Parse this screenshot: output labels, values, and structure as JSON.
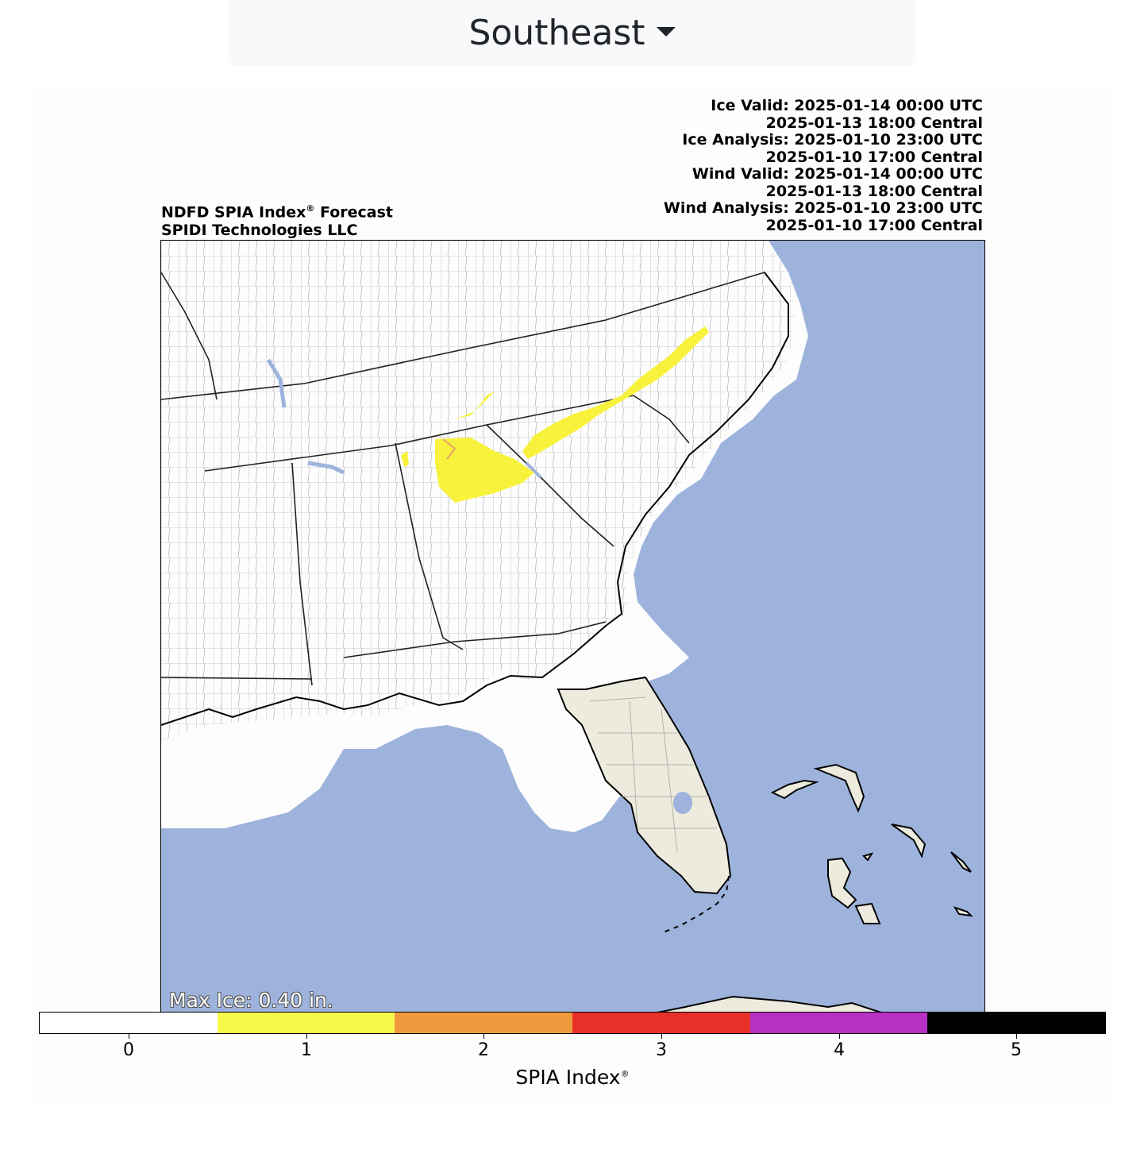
{
  "region_selector": {
    "label": "Southeast",
    "icon": "caret-down-icon"
  },
  "header_left": {
    "line1": "NDFD SPIA Index",
    "line1_sup": "®",
    "line1_suffix": " Forecast",
    "line2": "SPIDI Technologies LLC"
  },
  "header_right": [
    "Ice Valid: 2025-01-14 00:00 UTC",
    "2025-01-13 18:00 Central",
    "Ice Analysis: 2025-01-10 23:00 UTC",
    "2025-01-10 17:00 Central",
    "Wind Valid: 2025-01-14 00:00 UTC",
    "2025-01-13 18:00 Central",
    "Wind Analysis: 2025-01-10 23:00 UTC",
    "2025-01-10 17:00 Central"
  ],
  "map": {
    "max_ice_label": "Max Ice: 0.40 in.",
    "colors": {
      "ocean": "#9db3dc",
      "land": "#ffffff",
      "outside_domain_land": "#ecebde",
      "spia_1": "#f8f23c"
    }
  },
  "colorbar": {
    "ticks": [
      "0",
      "1",
      "2",
      "3",
      "4",
      "5"
    ],
    "colors": [
      "#ffffff",
      "#f8f84a",
      "#ef9a3c",
      "#e8302a",
      "#b82fc4",
      "#000000"
    ],
    "label": "SPIA Index",
    "label_sup": "®"
  }
}
